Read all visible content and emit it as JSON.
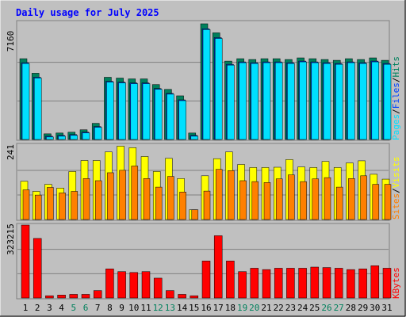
{
  "title": "Daily usage for July 2025",
  "colors": {
    "background": "#C0C0C0",
    "title": "#0000FF",
    "hits": "#00805C",
    "files": "#0040FF",
    "pages": "#00E0FF",
    "visits": "#FFFF00",
    "sites": "#FF8000",
    "kbytes": "#FF0000",
    "weekend_day": "#00805C",
    "weekday": "#000000"
  },
  "chart_data": [
    {
      "type": "bar",
      "name": "hits-files-pages",
      "legend": [
        "Pages",
        "/",
        "Files",
        "/",
        "Hits"
      ],
      "max_label": "7160",
      "ylim": [
        0,
        7160
      ],
      "categories": [
        "1",
        "2",
        "3",
        "4",
        "5",
        "6",
        "7",
        "8",
        "9",
        "10",
        "11",
        "12",
        "13",
        "14",
        "15",
        "16",
        "17",
        "18",
        "19",
        "20",
        "21",
        "22",
        "23",
        "24",
        "25",
        "26",
        "27",
        "28",
        "29",
        "30",
        "31"
      ],
      "series": [
        {
          "name": "Hits",
          "values": [
            5000,
            4100,
            350,
            400,
            450,
            600,
            1000,
            3850,
            3800,
            3750,
            3750,
            3400,
            3100,
            2700,
            400,
            7160,
            6600,
            4850,
            5000,
            4950,
            5000,
            5000,
            4950,
            5050,
            5000,
            4950,
            4900,
            5000,
            4950,
            5050,
            4900
          ]
        },
        {
          "name": "Files",
          "values": [
            4850,
            3950,
            300,
            350,
            400,
            550,
            900,
            3700,
            3650,
            3600,
            3600,
            3250,
            2950,
            2550,
            350,
            6950,
            6400,
            4750,
            4900,
            4850,
            4900,
            4900,
            4850,
            4950,
            4900,
            4850,
            4800,
            4900,
            4850,
            4950,
            4800
          ]
        },
        {
          "name": "Pages",
          "values": [
            4850,
            3950,
            300,
            350,
            400,
            550,
            900,
            3700,
            3650,
            3600,
            3600,
            3250,
            2950,
            2550,
            350,
            6950,
            6400,
            4750,
            4900,
            4850,
            4900,
            4900,
            4850,
            4950,
            4900,
            4850,
            4800,
            4900,
            4850,
            4950,
            4800
          ]
        }
      ]
    },
    {
      "type": "bar",
      "name": "visits-sites",
      "legend": [
        "Sites",
        "/",
        "Visits"
      ],
      "max_label": "241",
      "ylim": [
        0,
        241
      ],
      "categories": [
        "1",
        "2",
        "3",
        "4",
        "5",
        "6",
        "7",
        "8",
        "9",
        "10",
        "11",
        "12",
        "13",
        "14",
        "15",
        "16",
        "17",
        "18",
        "19",
        "20",
        "21",
        "22",
        "23",
        "24",
        "25",
        "26",
        "27",
        "28",
        "29",
        "30",
        "31"
      ],
      "series": [
        {
          "name": "Visits",
          "values": [
            125,
            92,
            115,
            103,
            157,
            193,
            193,
            221,
            240,
            235,
            206,
            157,
            200,
            134,
            32,
            143,
            199,
            221,
            180,
            170,
            170,
            171,
            196,
            172,
            170,
            190,
            170,
            185,
            192,
            148,
            132
          ]
        },
        {
          "name": "Sites",
          "values": [
            97,
            80,
            105,
            87,
            92,
            134,
            127,
            153,
            161,
            175,
            134,
            106,
            141,
            90,
            32,
            93,
            164,
            160,
            127,
            124,
            121,
            133,
            146,
            124,
            133,
            137,
            106,
            134,
            143,
            115,
            115
          ]
        }
      ]
    },
    {
      "type": "bar",
      "name": "kbytes",
      "legend": [
        "KBytes"
      ],
      "max_label": "323215",
      "ylim": [
        0,
        323215
      ],
      "categories": [
        "1",
        "2",
        "3",
        "4",
        "5",
        "6",
        "7",
        "8",
        "9",
        "10",
        "11",
        "12",
        "13",
        "14",
        "15",
        "16",
        "17",
        "18",
        "19",
        "20",
        "21",
        "22",
        "23",
        "24",
        "25",
        "26",
        "27",
        "28",
        "29",
        "30",
        "31"
      ],
      "series": [
        {
          "name": "KBytes",
          "values": [
            323215,
            264000,
            10000,
            13000,
            16000,
            16000,
            33000,
            129000,
            117000,
            113000,
            117000,
            88000,
            33000,
            16000,
            10000,
            164000,
            276000,
            164000,
            117000,
            132000,
            126000,
            132000,
            132000,
            132000,
            137000,
            135000,
            132000,
            126000,
            129000,
            143000,
            132000
          ]
        }
      ]
    }
  ],
  "x_labels": [
    {
      "label": "1",
      "weekend": false
    },
    {
      "label": "2",
      "weekend": false
    },
    {
      "label": "3",
      "weekend": false
    },
    {
      "label": "4",
      "weekend": false
    },
    {
      "label": "5",
      "weekend": true
    },
    {
      "label": "6",
      "weekend": true
    },
    {
      "label": "7",
      "weekend": false
    },
    {
      "label": "8",
      "weekend": false
    },
    {
      "label": "9",
      "weekend": false
    },
    {
      "label": "10",
      "weekend": false
    },
    {
      "label": "11",
      "weekend": false
    },
    {
      "label": "12",
      "weekend": true
    },
    {
      "label": "13",
      "weekend": true
    },
    {
      "label": "14",
      "weekend": false
    },
    {
      "label": "15",
      "weekend": false
    },
    {
      "label": "16",
      "weekend": false
    },
    {
      "label": "17",
      "weekend": false
    },
    {
      "label": "18",
      "weekend": false
    },
    {
      "label": "19",
      "weekend": true
    },
    {
      "label": "20",
      "weekend": true
    },
    {
      "label": "21",
      "weekend": false
    },
    {
      "label": "22",
      "weekend": false
    },
    {
      "label": "23",
      "weekend": false
    },
    {
      "label": "24",
      "weekend": false
    },
    {
      "label": "25",
      "weekend": false
    },
    {
      "label": "26",
      "weekend": true
    },
    {
      "label": "27",
      "weekend": true
    },
    {
      "label": "28",
      "weekend": false
    },
    {
      "label": "29",
      "weekend": false
    },
    {
      "label": "30",
      "weekend": false
    },
    {
      "label": "31",
      "weekend": false
    }
  ]
}
